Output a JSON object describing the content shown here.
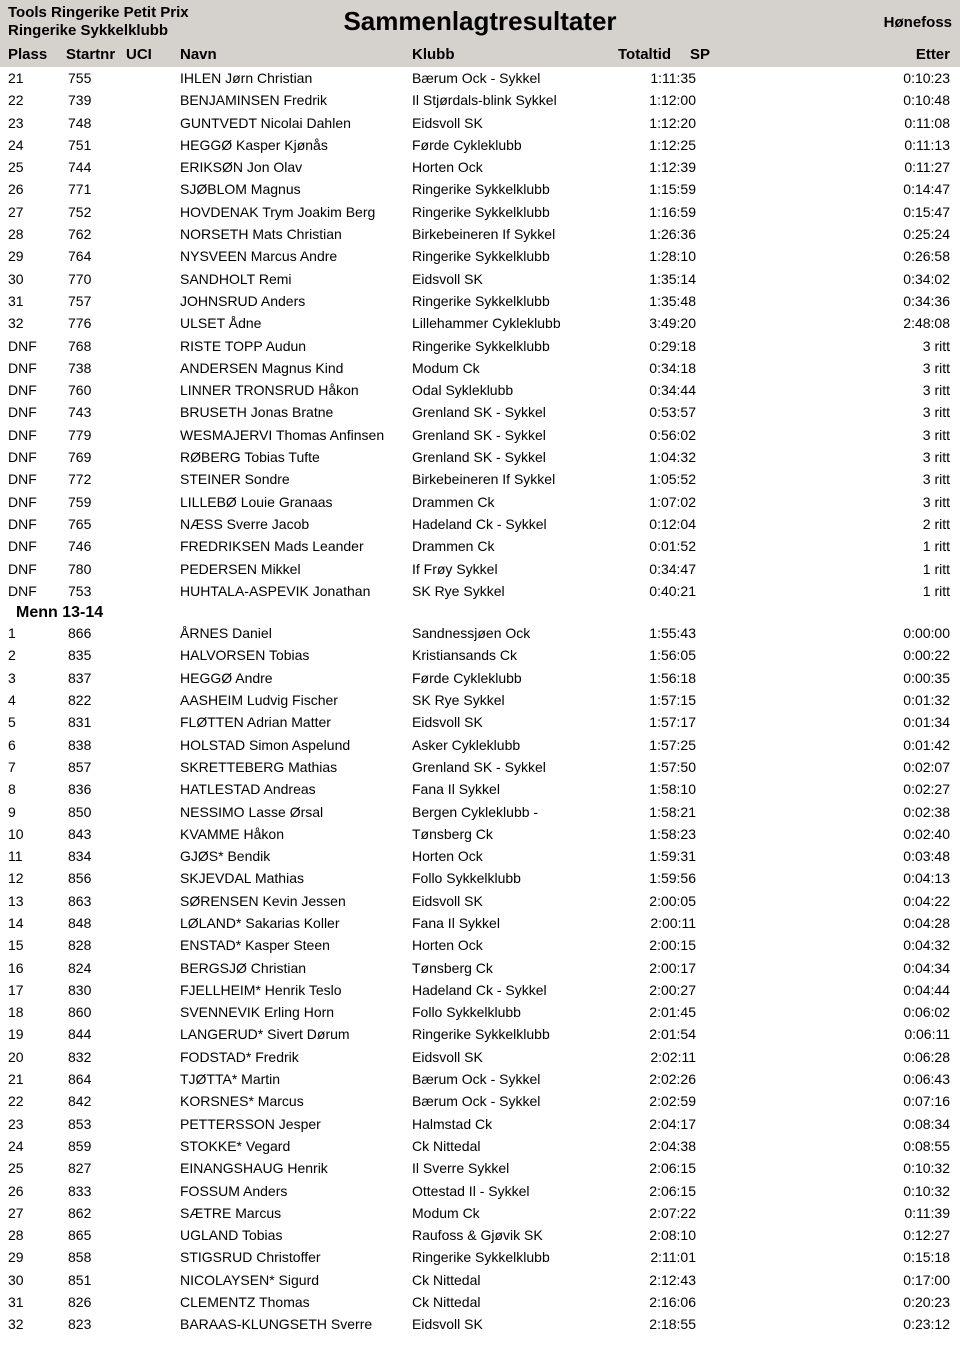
{
  "header": {
    "left_line1": "Tools Ringerike Petit Prix",
    "left_line2": "Ringerike Sykkelklubb",
    "center": "Sammenlagtresultater",
    "right": "Hønefoss"
  },
  "columns": {
    "plass": "Plass",
    "startnr": "Startnr",
    "uci": "UCI",
    "navn": "Navn",
    "klubb": "Klubb",
    "total": "Totaltid",
    "sp": "SP",
    "etter": "Etter"
  },
  "group1": [
    {
      "pl": "21",
      "nr": "755",
      "navn": "IHLEN Jørn Christian",
      "klubb": "Bærum Ock - Sykkel",
      "tot": "1:11:35",
      "etter": "0:10:23"
    },
    {
      "pl": "22",
      "nr": "739",
      "navn": "BENJAMINSEN Fredrik",
      "klubb": "Il Stjørdals-blink Sykkel",
      "tot": "1:12:00",
      "etter": "0:10:48"
    },
    {
      "pl": "23",
      "nr": "748",
      "navn": "GUNTVEDT Nicolai Dahlen",
      "klubb": "Eidsvoll SK",
      "tot": "1:12:20",
      "etter": "0:11:08"
    },
    {
      "pl": "24",
      "nr": "751",
      "navn": "HEGGØ Kasper Kjønås",
      "klubb": "Førde Cykleklubb",
      "tot": "1:12:25",
      "etter": "0:11:13"
    },
    {
      "pl": "25",
      "nr": "744",
      "navn": "ERIKSØN Jon Olav",
      "klubb": "Horten Ock",
      "tot": "1:12:39",
      "etter": "0:11:27"
    },
    {
      "pl": "26",
      "nr": "771",
      "navn": "SJØBLOM Magnus",
      "klubb": "Ringerike Sykkelklubb",
      "tot": "1:15:59",
      "etter": "0:14:47"
    },
    {
      "pl": "27",
      "nr": "752",
      "navn": "HOVDENAK Trym Joakim Berg",
      "klubb": "Ringerike Sykkelklubb",
      "tot": "1:16:59",
      "etter": "0:15:47"
    },
    {
      "pl": "28",
      "nr": "762",
      "navn": "NORSETH Mats Christian",
      "klubb": "Birkebeineren If Sykkel",
      "tot": "1:26:36",
      "etter": "0:25:24"
    },
    {
      "pl": "29",
      "nr": "764",
      "navn": "NYSVEEN Marcus Andre",
      "klubb": "Ringerike Sykkelklubb",
      "tot": "1:28:10",
      "etter": "0:26:58"
    },
    {
      "pl": "30",
      "nr": "770",
      "navn": "SANDHOLT Remi",
      "klubb": "Eidsvoll SK",
      "tot": "1:35:14",
      "etter": "0:34:02"
    },
    {
      "pl": "31",
      "nr": "757",
      "navn": "JOHNSRUD Anders",
      "klubb": "Ringerike Sykkelklubb",
      "tot": "1:35:48",
      "etter": "0:34:36"
    },
    {
      "pl": "32",
      "nr": "776",
      "navn": "ULSET Ådne",
      "klubb": "Lillehammer Cykleklubb",
      "tot": "3:49:20",
      "etter": "2:48:08"
    },
    {
      "pl": "DNF",
      "nr": "768",
      "navn": "RISTE TOPP Audun",
      "klubb": "Ringerike Sykkelklubb",
      "tot": "0:29:18",
      "etter": "3 ritt"
    },
    {
      "pl": "DNF",
      "nr": "738",
      "navn": "ANDERSEN Magnus Kind",
      "klubb": "Modum Ck",
      "tot": "0:34:18",
      "etter": "3 ritt"
    },
    {
      "pl": "DNF",
      "nr": "760",
      "navn": "LINNER TRONSRUD Håkon",
      "klubb": "Odal Sykleklubb",
      "tot": "0:34:44",
      "etter": "3 ritt"
    },
    {
      "pl": "DNF",
      "nr": "743",
      "navn": "BRUSETH Jonas Bratne",
      "klubb": "Grenland SK - Sykkel",
      "tot": "0:53:57",
      "etter": "3 ritt"
    },
    {
      "pl": "DNF",
      "nr": "779",
      "navn": "WESMAJERVI Thomas Anfinsen",
      "klubb": "Grenland SK - Sykkel",
      "tot": "0:56:02",
      "etter": "3 ritt"
    },
    {
      "pl": "DNF",
      "nr": "769",
      "navn": "RØBERG Tobias Tufte",
      "klubb": "Grenland SK - Sykkel",
      "tot": "1:04:32",
      "etter": "3 ritt"
    },
    {
      "pl": "DNF",
      "nr": "772",
      "navn": "STEINER Sondre",
      "klubb": "Birkebeineren If Sykkel",
      "tot": "1:05:52",
      "etter": "3 ritt"
    },
    {
      "pl": "DNF",
      "nr": "759",
      "navn": "LILLEBØ Louie Granaas",
      "klubb": "Drammen Ck",
      "tot": "1:07:02",
      "etter": "3 ritt"
    },
    {
      "pl": "DNF",
      "nr": "765",
      "navn": "NÆSS Sverre Jacob",
      "klubb": "Hadeland Ck - Sykkel",
      "tot": "0:12:04",
      "etter": "2 ritt"
    },
    {
      "pl": "DNF",
      "nr": "746",
      "navn": "FREDRIKSEN Mads Leander",
      "klubb": "Drammen Ck",
      "tot": "0:01:52",
      "etter": "1 ritt"
    },
    {
      "pl": "DNF",
      "nr": "780",
      "navn": "PEDERSEN Mikkel",
      "klubb": "If Frøy Sykkel",
      "tot": "0:34:47",
      "etter": "1 ritt"
    },
    {
      "pl": "DNF",
      "nr": "753",
      "navn": "HUHTALA-ASPEVIK Jonathan",
      "klubb": "SK Rye Sykkel",
      "tot": "0:40:21",
      "etter": "1 ritt"
    }
  ],
  "category2": "Menn 13-14",
  "group2": [
    {
      "pl": "1",
      "nr": "866",
      "navn": "ÅRNES Daniel",
      "klubb": "Sandnessjøen Ock",
      "tot": "1:55:43",
      "etter": "0:00:00"
    },
    {
      "pl": "2",
      "nr": "835",
      "navn": "HALVORSEN Tobias",
      "klubb": "Kristiansands Ck",
      "tot": "1:56:05",
      "etter": "0:00:22"
    },
    {
      "pl": "3",
      "nr": "837",
      "navn": "HEGGØ Andre",
      "klubb": "Førde Cykleklubb",
      "tot": "1:56:18",
      "etter": "0:00:35"
    },
    {
      "pl": "4",
      "nr": "822",
      "navn": "AASHEIM Ludvig Fischer",
      "klubb": "SK Rye Sykkel",
      "tot": "1:57:15",
      "etter": "0:01:32"
    },
    {
      "pl": "5",
      "nr": "831",
      "navn": "FLØTTEN Adrian Matter",
      "klubb": "Eidsvoll SK",
      "tot": "1:57:17",
      "etter": "0:01:34"
    },
    {
      "pl": "6",
      "nr": "838",
      "navn": "HOLSTAD Simon Aspelund",
      "klubb": "Asker Cykleklubb",
      "tot": "1:57:25",
      "etter": "0:01:42"
    },
    {
      "pl": "7",
      "nr": "857",
      "navn": "SKRETTEBERG Mathias",
      "klubb": "Grenland SK - Sykkel",
      "tot": "1:57:50",
      "etter": "0:02:07"
    },
    {
      "pl": "8",
      "nr": "836",
      "navn": "HATLESTAD Andreas",
      "klubb": "Fana Il Sykkel",
      "tot": "1:58:10",
      "etter": "0:02:27"
    },
    {
      "pl": "9",
      "nr": "850",
      "navn": "NESSIMO Lasse Ørsal",
      "klubb": "Bergen Cykleklubb -",
      "tot": "1:58:21",
      "etter": "0:02:38"
    },
    {
      "pl": "10",
      "nr": "843",
      "navn": "KVAMME Håkon",
      "klubb": "Tønsberg Ck",
      "tot": "1:58:23",
      "etter": "0:02:40"
    },
    {
      "pl": "11",
      "nr": "834",
      "navn": "GJØS* Bendik",
      "klubb": "Horten Ock",
      "tot": "1:59:31",
      "etter": "0:03:48"
    },
    {
      "pl": "12",
      "nr": "856",
      "navn": "SKJEVDAL Mathias",
      "klubb": "Follo Sykkelklubb",
      "tot": "1:59:56",
      "etter": "0:04:13"
    },
    {
      "pl": "13",
      "nr": "863",
      "navn": "SØRENSEN Kevin Jessen",
      "klubb": "Eidsvoll SK",
      "tot": "2:00:05",
      "etter": "0:04:22"
    },
    {
      "pl": "14",
      "nr": "848",
      "navn": "LØLAND* Sakarias Koller",
      "klubb": "Fana Il Sykkel",
      "tot": "2:00:11",
      "etter": "0:04:28"
    },
    {
      "pl": "15",
      "nr": "828",
      "navn": "ENSTAD* Kasper Steen",
      "klubb": "Horten Ock",
      "tot": "2:00:15",
      "etter": "0:04:32"
    },
    {
      "pl": "16",
      "nr": "824",
      "navn": "BERGSJØ Christian",
      "klubb": "Tønsberg Ck",
      "tot": "2:00:17",
      "etter": "0:04:34"
    },
    {
      "pl": "17",
      "nr": "830",
      "navn": "FJELLHEIM* Henrik Teslo",
      "klubb": "Hadeland Ck - Sykkel",
      "tot": "2:00:27",
      "etter": "0:04:44"
    },
    {
      "pl": "18",
      "nr": "860",
      "navn": "SVENNEVIK Erling Horn",
      "klubb": "Follo Sykkelklubb",
      "tot": "2:01:45",
      "etter": "0:06:02"
    },
    {
      "pl": "19",
      "nr": "844",
      "navn": "LANGERUD* Sivert Dørum",
      "klubb": "Ringerike Sykkelklubb",
      "tot": "2:01:54",
      "etter": "0:06:11"
    },
    {
      "pl": "20",
      "nr": "832",
      "navn": "FODSTAD* Fredrik",
      "klubb": "Eidsvoll SK",
      "tot": "2:02:11",
      "etter": "0:06:28"
    },
    {
      "pl": "21",
      "nr": "864",
      "navn": "TJØTTA* Martin",
      "klubb": "Bærum Ock - Sykkel",
      "tot": "2:02:26",
      "etter": "0:06:43"
    },
    {
      "pl": "22",
      "nr": "842",
      "navn": "KORSNES* Marcus",
      "klubb": "Bærum Ock - Sykkel",
      "tot": "2:02:59",
      "etter": "0:07:16"
    },
    {
      "pl": "23",
      "nr": "853",
      "navn": "PETTERSSON Jesper",
      "klubb": "Halmstad Ck",
      "tot": "2:04:17",
      "etter": "0:08:34"
    },
    {
      "pl": "24",
      "nr": "859",
      "navn": "STOKKE* Vegard",
      "klubb": "Ck Nittedal",
      "tot": "2:04:38",
      "etter": "0:08:55"
    },
    {
      "pl": "25",
      "nr": "827",
      "navn": "EINANGSHAUG Henrik",
      "klubb": "Il Sverre Sykkel",
      "tot": "2:06:15",
      "etter": "0:10:32"
    },
    {
      "pl": "26",
      "nr": "833",
      "navn": "FOSSUM Anders",
      "klubb": "Ottestad Il - Sykkel",
      "tot": "2:06:15",
      "etter": "0:10:32"
    },
    {
      "pl": "27",
      "nr": "862",
      "navn": "SÆTRE Marcus",
      "klubb": "Modum Ck",
      "tot": "2:07:22",
      "etter": "0:11:39"
    },
    {
      "pl": "28",
      "nr": "865",
      "navn": "UGLAND Tobias",
      "klubb": "Raufoss & Gjøvik SK",
      "tot": "2:08:10",
      "etter": "0:12:27"
    },
    {
      "pl": "29",
      "nr": "858",
      "navn": "STIGSRUD Christoffer",
      "klubb": "Ringerike Sykkelklubb",
      "tot": "2:11:01",
      "etter": "0:15:18"
    },
    {
      "pl": "30",
      "nr": "851",
      "navn": "NICOLAYSEN* Sigurd",
      "klubb": "Ck Nittedal",
      "tot": "2:12:43",
      "etter": "0:17:00"
    },
    {
      "pl": "31",
      "nr": "826",
      "navn": "CLEMENTZ Thomas",
      "klubb": "Ck Nittedal",
      "tot": "2:16:06",
      "etter": "0:20:23"
    },
    {
      "pl": "32",
      "nr": "823",
      "navn": "BARAAS-KLUNGSETH Sverre",
      "klubb": "Eidsvoll SK",
      "tot": "2:18:55",
      "etter": "0:23:12"
    }
  ]
}
